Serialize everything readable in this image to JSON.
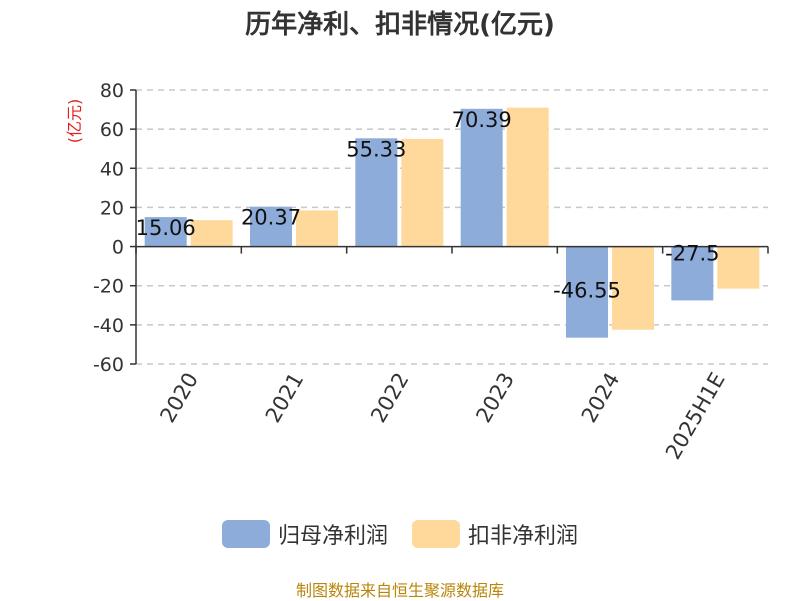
{
  "chart_data": {
    "type": "bar",
    "title": "历年净利、扣非情况(亿元)",
    "ylabel": "(亿元)",
    "categories": [
      "2020",
      "2021",
      "2022",
      "2023",
      "2024",
      "2025H1E"
    ],
    "series": [
      {
        "name": "归母净利润",
        "color": "#8eacda",
        "values": [
          15.06,
          20.37,
          55.33,
          70.39,
          -46.55,
          -27.5
        ],
        "labels": [
          "15.06",
          "20.37",
          "55.33",
          "70.39",
          "-46.55",
          "-27.5"
        ]
      },
      {
        "name": "扣非净利润",
        "color": "#ffd99b",
        "values": [
          13.5,
          18.5,
          55.0,
          71.0,
          -42.5,
          -21.5
        ]
      }
    ],
    "yticks": [
      80,
      60,
      40,
      20,
      0,
      -20,
      -40,
      -60
    ],
    "ylim": [
      -60,
      80
    ],
    "grid": true,
    "legend": "bottom"
  },
  "source": "制图数据来自恒生聚源数据库"
}
